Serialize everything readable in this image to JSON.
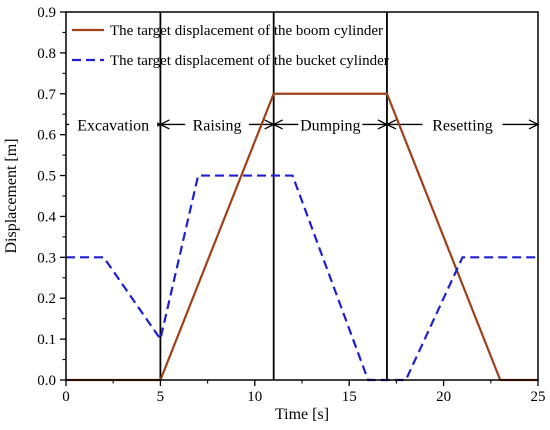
{
  "chart_data": {
    "type": "line",
    "title": "",
    "xlabel": "Time [s]",
    "ylabel": "Displacement [m]",
    "xlim": [
      0,
      25
    ],
    "ylim": [
      0,
      0.9
    ],
    "xticks": [
      0,
      5,
      10,
      15,
      20,
      25
    ],
    "xtick_labels": [
      "0",
      "5",
      "10",
      "15",
      "20",
      "25"
    ],
    "yticks": [
      0,
      0.1,
      0.2,
      0.3,
      0.4,
      0.5,
      0.6,
      0.7,
      0.8,
      0.9
    ],
    "ytick_labels": [
      "0.0",
      "0.1",
      "0.2",
      "0.3",
      "0.4",
      "0.5",
      "0.6",
      "0.7",
      "0.8",
      "0.9"
    ],
    "grid": false,
    "legend_position": "top-left",
    "series": [
      {
        "name": "The target displacement of the boom cylinder",
        "color": "#a0401a",
        "style": "solid",
        "x": [
          0,
          5,
          11,
          17,
          23,
          25
        ],
        "y": [
          0,
          0,
          0.7,
          0.7,
          0,
          0
        ]
      },
      {
        "name": "The target displacement of the bucket cylinder",
        "color": "#1f1fd0",
        "style": "dashed",
        "x": [
          0,
          2,
          5,
          7,
          12,
          16,
          18,
          21,
          25
        ],
        "y": [
          0.3,
          0.3,
          0.1,
          0.5,
          0.5,
          0,
          0,
          0.3,
          0.3
        ]
      }
    ],
    "phase_boundaries": [
      5,
      11,
      17
    ],
    "phase_arrow_y": 0.625,
    "phases": [
      {
        "label": "Excavation",
        "start": 0,
        "end": 5
      },
      {
        "label": "Raising",
        "start": 5,
        "end": 11
      },
      {
        "label": "Dumping",
        "start": 11,
        "end": 17
      },
      {
        "label": "Resetting",
        "start": 17,
        "end": 25
      }
    ]
  }
}
